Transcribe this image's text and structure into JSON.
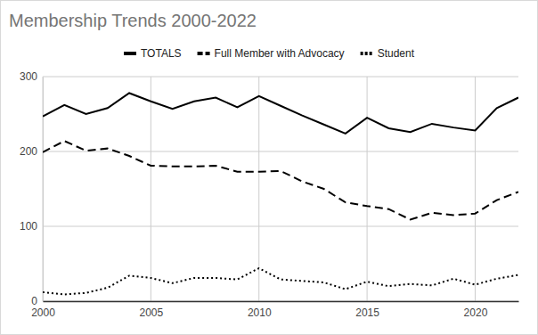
{
  "chart_data": {
    "type": "line",
    "title": "Membership Trends 2000-2022",
    "x": [
      2000,
      2001,
      2002,
      2003,
      2004,
      2005,
      2006,
      2007,
      2008,
      2009,
      2010,
      2011,
      2012,
      2013,
      2014,
      2015,
      2016,
      2017,
      2018,
      2019,
      2020,
      2021,
      2022
    ],
    "series": [
      {
        "name": "TOTALS",
        "color": "#000000",
        "line_style": "solid",
        "values": [
          247,
          262,
          250,
          258,
          278,
          267,
          257,
          267,
          272,
          259,
          274,
          261,
          248,
          236,
          224,
          245,
          231,
          226,
          237,
          232,
          228,
          258,
          272
        ]
      },
      {
        "name": "Full Member with Advocacy",
        "color": "#000000",
        "line_style": "dashed",
        "values": [
          199,
          214,
          201,
          204,
          194,
          181,
          180,
          180,
          181,
          173,
          173,
          174,
          160,
          150,
          132,
          127,
          123,
          109,
          118,
          115,
          117,
          135,
          146
        ]
      },
      {
        "name": "Student",
        "color": "#000000",
        "line_style": "dotted",
        "values": [
          12,
          9,
          11,
          18,
          34,
          31,
          24,
          31,
          31,
          29,
          44,
          29,
          27,
          25,
          16,
          26,
          20,
          23,
          21,
          30,
          22,
          30,
          35
        ]
      }
    ],
    "xlim": [
      2000,
      2022
    ],
    "xticks": [
      2000,
      2005,
      2010,
      2015,
      2020
    ],
    "ylim": [
      0,
      300
    ],
    "yticks": [
      0,
      100,
      200,
      300
    ],
    "grid": true,
    "legend": "top"
  }
}
